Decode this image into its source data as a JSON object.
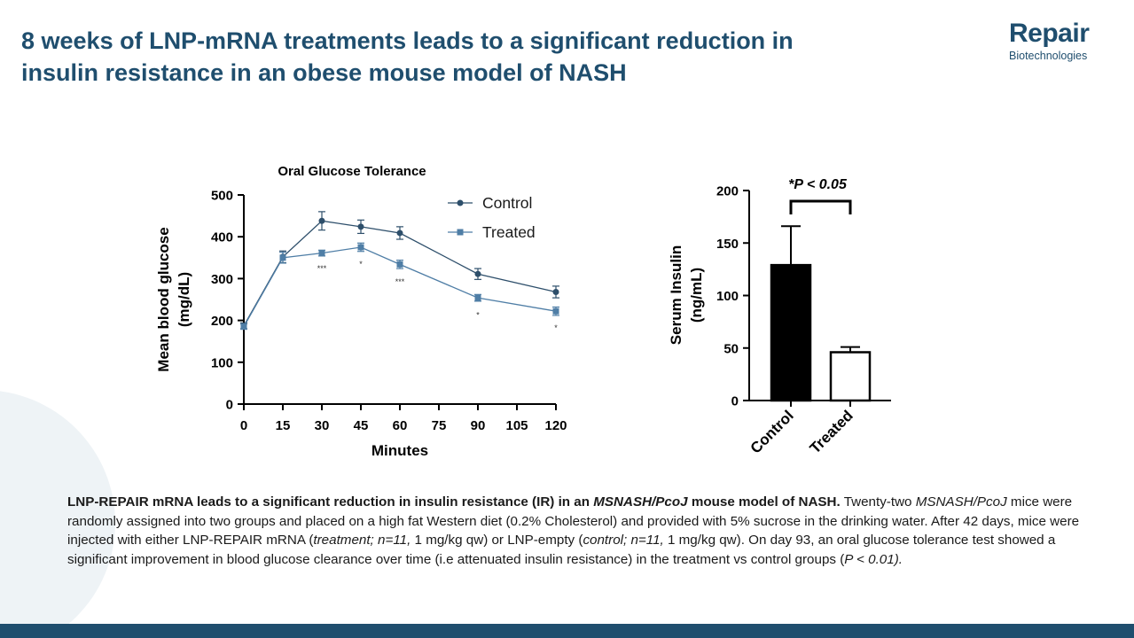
{
  "slide": {
    "title_line1": "8 weeks of LNP-mRNA treatments leads to a significant reduction in",
    "title_line2": "insulin resistance in an obese mouse model of NASH",
    "brand_colors": {
      "primary": "#1f4e6e",
      "control": "#2e4f6b",
      "treated": "#4f7ea6"
    }
  },
  "logo": {
    "word": "Repair",
    "sub": "Biotechnologies"
  },
  "chart_data": [
    {
      "type": "line",
      "title": "Oral Glucose Tolerance",
      "xlabel": "Minutes",
      "ylabel_line1": "Mean blood glucose",
      "ylabel_line2": "(mg/dL)",
      "xlim": [
        0,
        120
      ],
      "ylim": [
        0,
        500
      ],
      "x_ticks": [
        0,
        15,
        30,
        45,
        60,
        75,
        90,
        105,
        120
      ],
      "y_ticks": [
        0,
        100,
        200,
        300,
        400,
        500
      ],
      "legend_position": "top-right",
      "series": [
        {
          "name": "Control",
          "marker": "circle",
          "x": [
            0,
            15,
            30,
            45,
            60,
            90,
            120
          ],
          "y": [
            187,
            352,
            438,
            424,
            409,
            311,
            268
          ],
          "err": [
            7,
            14,
            22,
            16,
            15,
            13,
            14
          ]
        },
        {
          "name": "Treated",
          "marker": "square",
          "x": [
            0,
            15,
            30,
            45,
            60,
            90,
            120
          ],
          "y": [
            185,
            350,
            361,
            375,
            334,
            254,
            222
          ],
          "err": [
            6,
            13,
            7,
            10,
            10,
            8,
            10
          ]
        }
      ],
      "annotations": [
        {
          "x": 30,
          "y": 318,
          "text": "***"
        },
        {
          "x": 45,
          "y": 328,
          "text": "*"
        },
        {
          "x": 60,
          "y": 286,
          "text": "***"
        },
        {
          "x": 90,
          "y": 207,
          "text": "*"
        },
        {
          "x": 120,
          "y": 176,
          "text": "*"
        }
      ]
    },
    {
      "type": "bar",
      "ylabel_line1": "Serum Insulin",
      "ylabel_line2": "(ng/mL)",
      "ylim": [
        0,
        200
      ],
      "y_ticks": [
        0,
        50,
        100,
        150,
        200
      ],
      "categories": [
        "Control",
        "Treated"
      ],
      "values": [
        129,
        46
      ],
      "errors": [
        37,
        5
      ],
      "fills": [
        "#000000",
        "#ffffff"
      ],
      "significance": "*P < 0.05"
    }
  ],
  "caption": {
    "bold_lead_1": "LNP-REPAIR mRNA leads to a significant reduction in insulin resistance (IR) in an ",
    "bold_italic_strain": "MSNASH/PcoJ",
    "bold_lead_2": " mouse model of NASH.",
    "text_1": " Twenty-two ",
    "italic_strain": "MSNASH/PcoJ",
    "text_2": " mice were randomly assigned into two groups and placed on a high fat Western diet (0.2% Cholesterol) and provided with 5% sucrose in the drinking water. After 42 days, mice were injected with either LNP-REPAIR mRNA (",
    "italic_treatment": "treatment; n=11,",
    "text_3": "  1 mg/kg qw) or LNP-empty (",
    "italic_control": "control; n=11,",
    "text_4": " 1 mg/kg qw). On day 93, an oral glucose tolerance test showed a significant improvement in blood glucose clearance over time (i.e attenuated insulin resistance) in the treatment vs control groups (",
    "italic_p": "P < 0.01).",
    "text_5": ""
  }
}
